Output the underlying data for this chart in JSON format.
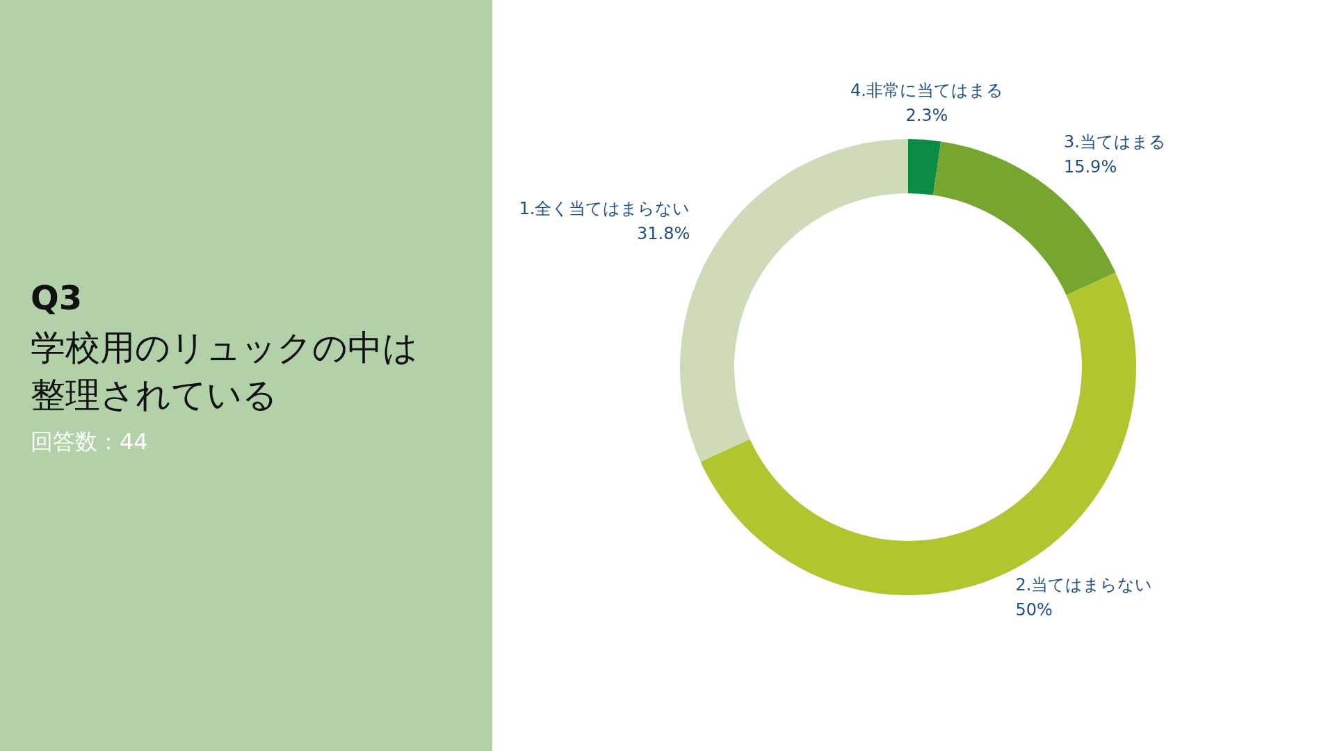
{
  "chart_data": {
    "type": "donut",
    "title": "Q3",
    "subtitle": "学校用のリュックの中は整理されている",
    "annotations": [
      "回答数：44"
    ],
    "categories": [
      "4.非常に当てはまる",
      "3.当てはまる",
      "2.当てはまらない",
      "1.全く当てはまらない"
    ],
    "values": [
      2.3,
      15.9,
      50,
      31.8
    ],
    "colors": [
      "#0b8c45",
      "#76a530",
      "#b0c530",
      "#cfdbb8"
    ],
    "value_labels": [
      "2.3%",
      "15.9%",
      "50%",
      "31.8%"
    ]
  }
}
